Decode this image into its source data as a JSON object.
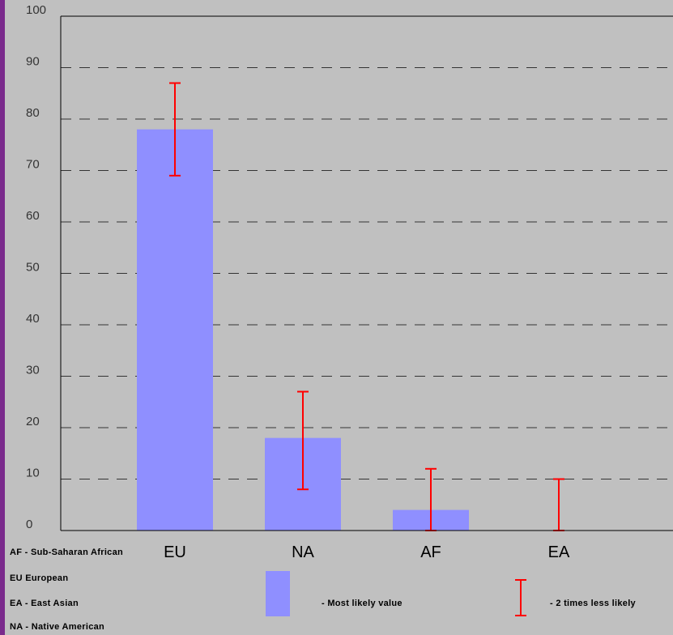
{
  "colors": {
    "bar": "#8f8fff",
    "error": "#ff0000",
    "grid": "#333333",
    "background": "#c0c0c0"
  },
  "chart_data": {
    "type": "bar",
    "categories": [
      "EU",
      "NA",
      "AF",
      "EA"
    ],
    "values": [
      78,
      18,
      4,
      0
    ],
    "error_low": [
      69,
      8,
      0,
      0
    ],
    "error_high": [
      87,
      27,
      12,
      10
    ],
    "ylim": [
      0,
      100
    ],
    "yticks": [
      "0",
      "10",
      "20",
      "30",
      "40",
      "50",
      "60",
      "70",
      "80",
      "90",
      "100"
    ],
    "grid": true,
    "legend": {
      "bar_label": "- Most likely value",
      "error_label": "- 2 times less likely"
    }
  },
  "abbreviations": [
    "AF - Sub-Saharan African",
    "EU   European",
    "EA - East Asian",
    "NA - Native American"
  ]
}
